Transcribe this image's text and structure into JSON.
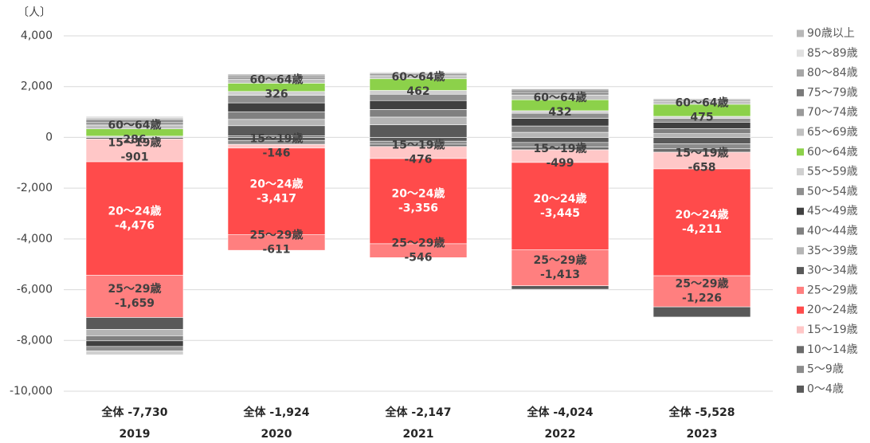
{
  "chart_data": {
    "type": "stacked_bar",
    "unit_label": "〔人〕",
    "categories": [
      "2019",
      "2020",
      "2021",
      "2022",
      "2023"
    ],
    "total_labels": [
      "全体 -7,730",
      "全体 -1,924",
      "全体 -2,147",
      "全体 -4,024",
      "全体 -5,528"
    ],
    "ylim": [
      -10000,
      4000
    ],
    "yticks": [
      {
        "value": -10000,
        "label": "-10,000"
      },
      {
        "value": -8000,
        "label": "-8,000"
      },
      {
        "value": -6000,
        "label": "-6,000"
      },
      {
        "value": -4000,
        "label": "-4,000"
      },
      {
        "value": -2000,
        "label": "-2,000"
      },
      0,
      {
        "value": 2000,
        "label": "2,000"
      },
      {
        "value": 4000,
        "label": "4,000"
      }
    ],
    "grid": true,
    "legend": "right",
    "series": [
      {
        "name": "0～4歳",
        "color": "#595959",
        "values": [
          -60,
          -120,
          -150,
          -200,
          -250
        ]
      },
      {
        "name": "5～9歳",
        "color": "#8c8c8c",
        "values": [
          20,
          -155,
          -120,
          -180,
          -200
        ]
      },
      {
        "name": "10～14歳",
        "color": "#6b6b6b",
        "values": [
          30,
          60,
          -89,
          -110,
          -133
        ]
      },
      {
        "name": "15～19歳",
        "color": "#ffc7c7",
        "values": [
          -901,
          -146,
          -476,
          -499,
          -658
        ],
        "value_labels": [
          "-901",
          "-146",
          "-476",
          "-499",
          "-658"
        ],
        "label_color": "#404040"
      },
      {
        "name": "20～24歳",
        "color": "#ff4b4b",
        "values": [
          -4476,
          -3417,
          -3356,
          -3445,
          -4211
        ],
        "value_labels": [
          "-4,476",
          "-3,417",
          "-3,356",
          "-3,445",
          "-4,211"
        ],
        "label_color": "#ffffff"
      },
      {
        "name": "25～29歳",
        "color": "#ff7f7f",
        "values": [
          -1659,
          -611,
          -546,
          -1413,
          -1226
        ],
        "value_labels": [
          "-1,659",
          "-611",
          "-546",
          "-1,413",
          "-1,226"
        ],
        "label_color": "#404040"
      },
      {
        "name": "30～34歳",
        "color": "#595959",
        "values": [
          -470,
          400,
          500,
          -137,
          -400
        ]
      },
      {
        "name": "35～39歳",
        "color": "#b5b5b5",
        "values": [
          -250,
          250,
          300,
          200,
          150
        ]
      },
      {
        "name": "40～44歳",
        "color": "#808080",
        "values": [
          -200,
          300,
          300,
          250,
          200
        ]
      },
      {
        "name": "45～49歳",
        "color": "#404040",
        "values": [
          -220,
          350,
          350,
          300,
          250
        ]
      },
      {
        "name": "50～54歳",
        "color": "#8f8f8f",
        "values": [
          -180,
          300,
          250,
          200,
          150
        ]
      },
      {
        "name": "55～59歳",
        "color": "#d0d0d0",
        "values": [
          -150,
          150,
          150,
          100,
          80
        ]
      },
      {
        "name": "60～64歳",
        "color": "#8cd14a",
        "values": [
          286,
          326,
          462,
          432,
          475
        ],
        "value_labels": [
          "286",
          "326",
          "462",
          "432",
          "475"
        ],
        "label_color": "#404040"
      },
      {
        "name": "65～69歳",
        "color": "#c0c0c0",
        "values": [
          150,
          150,
          120,
          180,
          120
        ]
      },
      {
        "name": "70～74歳",
        "color": "#9a9a9a",
        "values": [
          120,
          100,
          70,
          120,
          60
        ]
      },
      {
        "name": "75～79歳",
        "color": "#7a7a7a",
        "values": [
          80,
          60,
          40,
          80,
          30
        ]
      },
      {
        "name": "80～84歳",
        "color": "#a6a6a6",
        "values": [
          70,
          50,
          30,
          50,
          20
        ]
      },
      {
        "name": "85～89歳",
        "color": "#e0e0e0",
        "values": [
          50,
          19,
          10,
          30,
          10
        ]
      },
      {
        "name": "90歳以上",
        "color": "#b8b8b8",
        "values": [
          30,
          10,
          8,
          18,
          5
        ]
      }
    ]
  }
}
